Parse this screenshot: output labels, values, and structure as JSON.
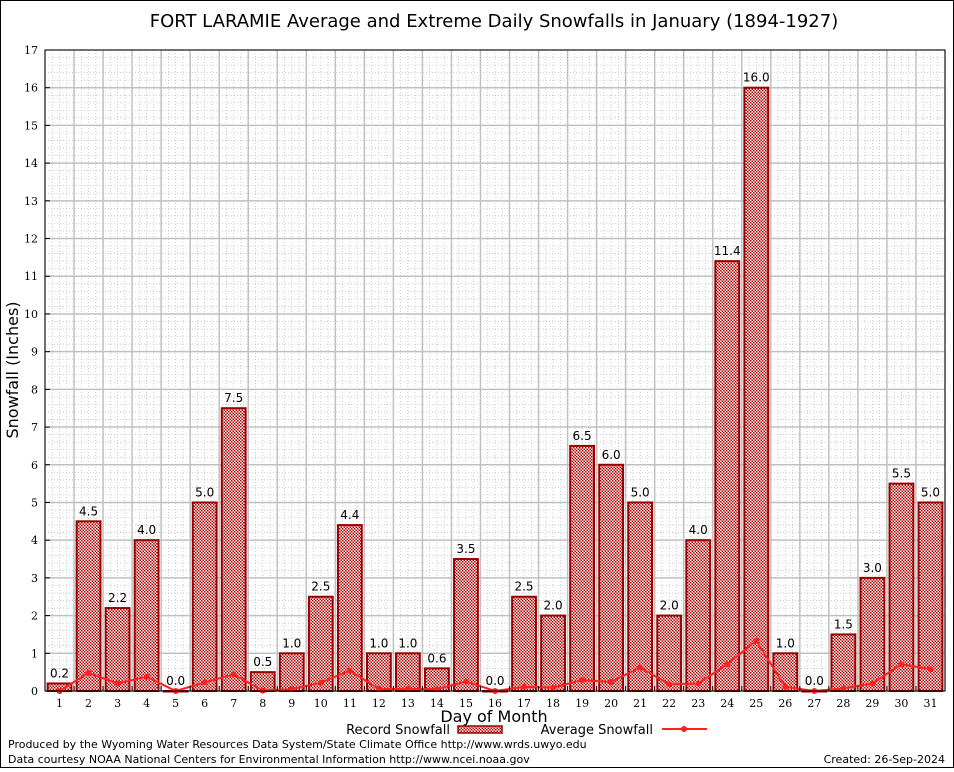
{
  "chart_data": {
    "type": "bar",
    "title": "FORT LARAMIE Average and Extreme Daily Snowfalls in January (1894-1927)",
    "xlabel": "Day of Month",
    "ylabel": "Snowfall (Inches)",
    "ylim": [
      0,
      17
    ],
    "yticks": [
      0,
      1,
      2,
      3,
      4,
      5,
      6,
      7,
      8,
      9,
      10,
      11,
      12,
      13,
      14,
      15,
      16,
      17
    ],
    "grid": true,
    "legend_placement": "bottom",
    "categories": [
      "1",
      "2",
      "3",
      "4",
      "5",
      "6",
      "7",
      "8",
      "9",
      "10",
      "11",
      "12",
      "13",
      "14",
      "15",
      "16",
      "17",
      "18",
      "19",
      "20",
      "21",
      "22",
      "23",
      "24",
      "25",
      "26",
      "27",
      "28",
      "29",
      "30",
      "31"
    ],
    "series": [
      {
        "name": "Record Snowfall",
        "type": "bar",
        "color": "#990000",
        "values": [
          0.2,
          4.5,
          2.2,
          4.0,
          0.0,
          5.0,
          7.5,
          0.5,
          1.0,
          2.5,
          4.4,
          1.0,
          1.0,
          0.6,
          3.5,
          0.0,
          2.5,
          2.0,
          6.5,
          6.0,
          5.0,
          2.0,
          4.0,
          11.4,
          16.0,
          1.0,
          0.0,
          1.5,
          3.0,
          5.5,
          5.0
        ],
        "labels": [
          "0.2",
          "4.5",
          "2.2",
          "4.0",
          "0.0",
          "5.0",
          "7.5",
          "0.5",
          "1.0",
          "2.5",
          "4.4",
          "1.0",
          "1.0",
          "0.6",
          "3.5",
          "0.0",
          "2.5",
          "2.0",
          "6.5",
          "6.0",
          "5.0",
          "2.0",
          "4.0",
          "11.4",
          "16.0",
          "1.0",
          "0.0",
          "1.5",
          "3.0",
          "5.5",
          "5.0"
        ]
      },
      {
        "name": "Average Snowfall",
        "type": "line",
        "color": "#ff2020",
        "values": [
          0.0,
          0.48,
          0.2,
          0.38,
          0.0,
          0.23,
          0.44,
          0.01,
          0.05,
          0.22,
          0.54,
          0.05,
          0.06,
          0.05,
          0.25,
          0.0,
          0.11,
          0.09,
          0.29,
          0.24,
          0.62,
          0.18,
          0.2,
          0.71,
          1.33,
          0.11,
          0.0,
          0.07,
          0.2,
          0.71,
          0.58
        ]
      }
    ]
  },
  "footer": {
    "line1": "Produced by the Wyoming Water Resources Data System/State Climate Office http://www.wrds.uwyo.edu",
    "line2": "Data courtesy NOAA National Centers for Environmental Information http://www.ncei.noaa.gov",
    "created": "Created: 26-Sep-2024"
  }
}
